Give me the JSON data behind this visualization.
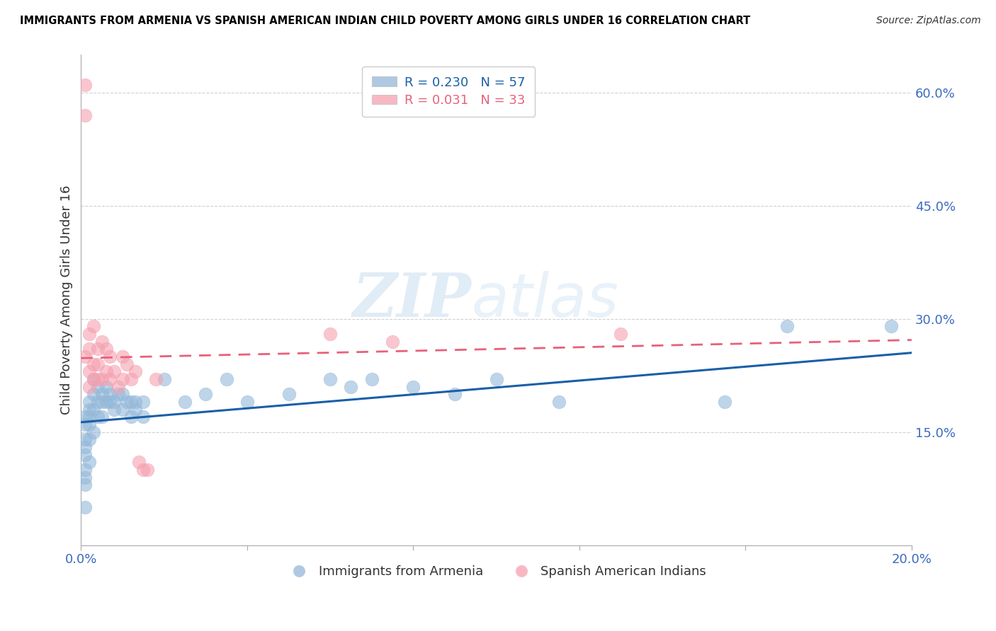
{
  "title": "IMMIGRANTS FROM ARMENIA VS SPANISH AMERICAN INDIAN CHILD POVERTY AMONG GIRLS UNDER 16 CORRELATION CHART",
  "source": "Source: ZipAtlas.com",
  "ylabel": "Child Poverty Among Girls Under 16",
  "watermark_zip": "ZIP",
  "watermark_atlas": "atlas",
  "xlim": [
    0.0,
    0.2
  ],
  "ylim": [
    0.0,
    0.65
  ],
  "right_yticks": [
    0.15,
    0.3,
    0.45,
    0.6
  ],
  "right_yticklabels": [
    "15.0%",
    "30.0%",
    "45.0%",
    "60.0%"
  ],
  "xticks": [
    0.0,
    0.04,
    0.08,
    0.12,
    0.16,
    0.2
  ],
  "xticklabels": [
    "0.0%",
    "",
    "",
    "",
    "",
    "20.0%"
  ],
  "legend1_r": "R = 0.230",
  "legend1_n": "N = 57",
  "legend2_r": "R = 0.031",
  "legend2_n": "N = 33",
  "legend_bottom_label1": "Immigrants from Armenia",
  "legend_bottom_label2": "Spanish American Indians",
  "blue_color": "#94b8d9",
  "pink_color": "#f5a0b0",
  "trend_blue": "#1a5fa8",
  "trend_pink": "#e8607a",
  "grid_color": "#d0d0d0",
  "blue_scatter_x": [
    0.001,
    0.001,
    0.001,
    0.001,
    0.001,
    0.001,
    0.001,
    0.001,
    0.001,
    0.002,
    0.002,
    0.002,
    0.002,
    0.002,
    0.002,
    0.003,
    0.003,
    0.003,
    0.003,
    0.004,
    0.004,
    0.004,
    0.005,
    0.005,
    0.005,
    0.006,
    0.006,
    0.007,
    0.007,
    0.008,
    0.008,
    0.009,
    0.01,
    0.01,
    0.011,
    0.012,
    0.012,
    0.013,
    0.013,
    0.015,
    0.015,
    0.02,
    0.025,
    0.03,
    0.035,
    0.04,
    0.05,
    0.06,
    0.065,
    0.07,
    0.08,
    0.09,
    0.1,
    0.115,
    0.155,
    0.17,
    0.195
  ],
  "blue_scatter_y": [
    0.17,
    0.16,
    0.14,
    0.13,
    0.12,
    0.1,
    0.09,
    0.08,
    0.05,
    0.19,
    0.18,
    0.17,
    0.16,
    0.14,
    0.11,
    0.22,
    0.2,
    0.18,
    0.15,
    0.21,
    0.19,
    0.17,
    0.2,
    0.19,
    0.17,
    0.21,
    0.19,
    0.2,
    0.19,
    0.19,
    0.18,
    0.2,
    0.2,
    0.18,
    0.19,
    0.19,
    0.17,
    0.19,
    0.18,
    0.19,
    0.17,
    0.22,
    0.19,
    0.2,
    0.22,
    0.19,
    0.2,
    0.22,
    0.21,
    0.22,
    0.21,
    0.2,
    0.22,
    0.19,
    0.19,
    0.29,
    0.29
  ],
  "pink_scatter_x": [
    0.001,
    0.001,
    0.001,
    0.002,
    0.002,
    0.002,
    0.002,
    0.003,
    0.003,
    0.003,
    0.004,
    0.004,
    0.004,
    0.005,
    0.005,
    0.006,
    0.006,
    0.007,
    0.007,
    0.008,
    0.009,
    0.01,
    0.01,
    0.011,
    0.012,
    0.013,
    0.014,
    0.015,
    0.016,
    0.018,
    0.06,
    0.075,
    0.13
  ],
  "pink_scatter_y": [
    0.61,
    0.57,
    0.25,
    0.28,
    0.26,
    0.23,
    0.21,
    0.29,
    0.24,
    0.22,
    0.26,
    0.24,
    0.22,
    0.27,
    0.22,
    0.26,
    0.23,
    0.25,
    0.22,
    0.23,
    0.21,
    0.25,
    0.22,
    0.24,
    0.22,
    0.23,
    0.11,
    0.1,
    0.1,
    0.22,
    0.28,
    0.27,
    0.28
  ],
  "blue_trend_x0": 0.0,
  "blue_trend_x1": 0.2,
  "blue_trend_y0": 0.163,
  "blue_trend_y1": 0.255,
  "pink_trend_x0": 0.0,
  "pink_trend_x1": 0.2,
  "pink_trend_y0": 0.248,
  "pink_trend_y1": 0.272
}
